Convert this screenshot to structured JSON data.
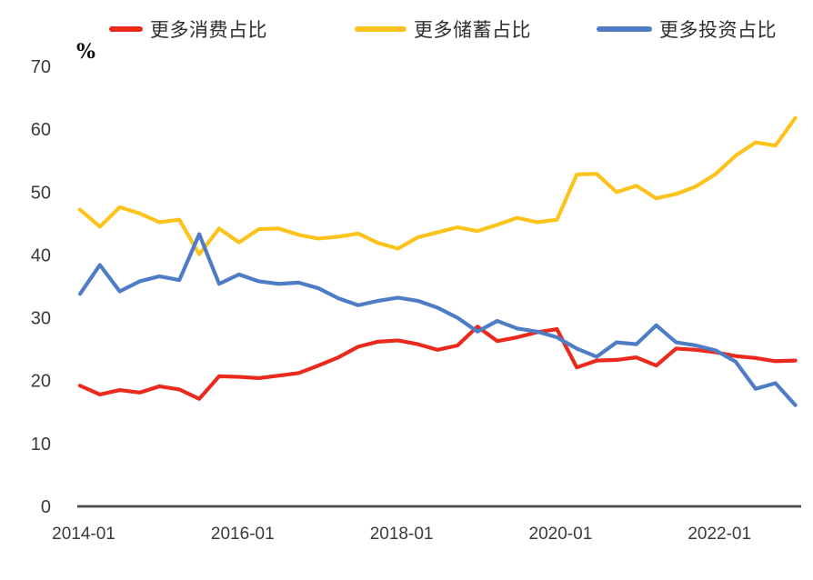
{
  "background": "#ffffff",
  "text_color": "#3a3a3a",
  "axis_color": "#4a4a4a",
  "chart_data": {
    "type": "line",
    "title": "",
    "ylabel": "%",
    "xlabel": "",
    "grid": false,
    "legend_position": "top-center",
    "ylim": [
      0,
      70
    ],
    "y_ticks": [
      0,
      10,
      20,
      30,
      40,
      50,
      60,
      70
    ],
    "x_tick_labels": [
      "2014-01",
      "2016-01",
      "2018-01",
      "2020-01",
      "2022-01"
    ],
    "x_tick_indices": [
      0,
      8,
      16,
      24,
      32
    ],
    "x": [
      "2014-01",
      "2014-04",
      "2014-07",
      "2014-10",
      "2015-01",
      "2015-04",
      "2015-07",
      "2015-10",
      "2016-01",
      "2016-04",
      "2016-07",
      "2016-10",
      "2017-01",
      "2017-04",
      "2017-07",
      "2017-10",
      "2018-01",
      "2018-04",
      "2018-07",
      "2018-10",
      "2019-01",
      "2019-04",
      "2019-07",
      "2019-10",
      "2020-01",
      "2020-04",
      "2020-07",
      "2020-10",
      "2021-01",
      "2021-04",
      "2021-07",
      "2021-10",
      "2022-01",
      "2022-04",
      "2022-07",
      "2022-10",
      "2023-01"
    ],
    "series": [
      {
        "key": "consumption",
        "name": "更多消费占比",
        "color": "#ea2a1c",
        "values": [
          19.2,
          17.8,
          18.5,
          18.1,
          19.1,
          18.6,
          17.1,
          20.7,
          20.6,
          20.4,
          20.8,
          21.2,
          22.4,
          23.7,
          25.4,
          26.2,
          26.4,
          25.8,
          24.9,
          25.6,
          28.6,
          26.3,
          26.9,
          27.7,
          28.2,
          22.1,
          23.2,
          23.3,
          23.7,
          22.4,
          25.1,
          24.9,
          24.5,
          23.9,
          23.6,
          23.1,
          23.2
        ]
      },
      {
        "key": "savings",
        "name": "更多储蓄占比",
        "color": "#fdc31d",
        "values": [
          47.2,
          44.5,
          47.6,
          46.6,
          45.2,
          45.6,
          40.1,
          44.2,
          42.0,
          44.1,
          44.2,
          43.2,
          42.6,
          42.9,
          43.4,
          41.9,
          41.0,
          42.8,
          43.6,
          44.4,
          43.8,
          44.8,
          45.9,
          45.2,
          45.6,
          52.8,
          52.9,
          50.0,
          51.0,
          49.0,
          49.7,
          50.9,
          52.9,
          55.8,
          57.9,
          57.4,
          61.8
        ]
      },
      {
        "key": "investment",
        "name": "更多投资占比",
        "color": "#4e7dc6",
        "values": [
          33.8,
          38.4,
          34.2,
          35.8,
          36.6,
          36.0,
          43.3,
          35.4,
          36.9,
          35.8,
          35.4,
          35.6,
          34.7,
          33.1,
          32.0,
          32.7,
          33.2,
          32.7,
          31.6,
          30.0,
          27.8,
          29.5,
          28.3,
          27.8,
          26.9,
          25.1,
          23.8,
          26.1,
          25.8,
          28.8,
          26.1,
          25.6,
          24.8,
          23.0,
          18.7,
          19.6,
          16.1
        ]
      }
    ]
  }
}
